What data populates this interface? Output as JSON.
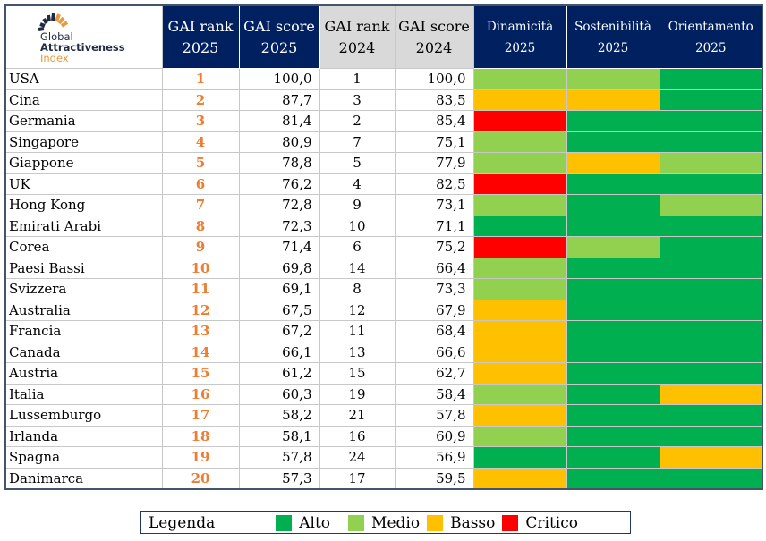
{
  "logo": {
    "line1": "Global",
    "line2": "Attractiveness",
    "line3": "Index"
  },
  "headers": {
    "rank2025": [
      "GAI rank",
      "2025"
    ],
    "score2025": [
      "GAI score",
      "2025"
    ],
    "rank2024": [
      "GAI rank",
      "2024"
    ],
    "score2024": [
      "GAI score",
      "2024"
    ],
    "dinamicita": [
      "Dinamicità",
      "2025"
    ],
    "sostenibilita": [
      "Sostenibilità",
      "2025"
    ],
    "orientamento": [
      "Orientamento",
      "2025"
    ]
  },
  "colors": {
    "alto": "#00B050",
    "medio": "#92D050",
    "basso": "#FFC000",
    "critico": "#FF0000"
  },
  "rows": [
    {
      "country": "USA",
      "rank2025": "1",
      "score2025": "100,0",
      "rank2024": "1",
      "score2024": "100,0",
      "levels": [
        "medio",
        "medio",
        "alto"
      ]
    },
    {
      "country": "Cina",
      "rank2025": "2",
      "score2025": "87,7",
      "rank2024": "3",
      "score2024": "83,5",
      "levels": [
        "basso",
        "basso",
        "alto"
      ]
    },
    {
      "country": "Germania",
      "rank2025": "3",
      "score2025": "81,4",
      "rank2024": "2",
      "score2024": "85,4",
      "levels": [
        "critico",
        "alto",
        "alto"
      ]
    },
    {
      "country": "Singapore",
      "rank2025": "4",
      "score2025": "80,9",
      "rank2024": "7",
      "score2024": "75,1",
      "levels": [
        "medio",
        "alto",
        "alto"
      ]
    },
    {
      "country": "Giappone",
      "rank2025": "5",
      "score2025": "78,8",
      "rank2024": "5",
      "score2024": "77,9",
      "levels": [
        "medio",
        "basso",
        "medio"
      ]
    },
    {
      "country": "UK",
      "rank2025": "6",
      "score2025": "76,2",
      "rank2024": "4",
      "score2024": "82,5",
      "levels": [
        "critico",
        "alto",
        "alto"
      ]
    },
    {
      "country": "Hong Kong",
      "rank2025": "7",
      "score2025": "72,8",
      "rank2024": "9",
      "score2024": "73,1",
      "levels": [
        "medio",
        "alto",
        "medio"
      ]
    },
    {
      "country": "Emirati Arabi",
      "rank2025": "8",
      "score2025": "72,3",
      "rank2024": "10",
      "score2024": "71,1",
      "levels": [
        "alto",
        "alto",
        "alto"
      ]
    },
    {
      "country": "Corea",
      "rank2025": "9",
      "score2025": "71,4",
      "rank2024": "6",
      "score2024": "75,2",
      "levels": [
        "critico",
        "medio",
        "alto"
      ]
    },
    {
      "country": "Paesi Bassi",
      "rank2025": "10",
      "score2025": "69,8",
      "rank2024": "14",
      "score2024": "66,4",
      "levels": [
        "medio",
        "alto",
        "alto"
      ]
    },
    {
      "country": "Svizzera",
      "rank2025": "11",
      "score2025": "69,1",
      "rank2024": "8",
      "score2024": "73,3",
      "levels": [
        "medio",
        "alto",
        "alto"
      ]
    },
    {
      "country": "Australia",
      "rank2025": "12",
      "score2025": "67,5",
      "rank2024": "12",
      "score2024": "67,9",
      "levels": [
        "basso",
        "alto",
        "alto"
      ]
    },
    {
      "country": "Francia",
      "rank2025": "13",
      "score2025": "67,2",
      "rank2024": "11",
      "score2024": "68,4",
      "levels": [
        "basso",
        "alto",
        "alto"
      ]
    },
    {
      "country": "Canada",
      "rank2025": "14",
      "score2025": "66,1",
      "rank2024": "13",
      "score2024": "66,6",
      "levels": [
        "basso",
        "alto",
        "alto"
      ]
    },
    {
      "country": "Austria",
      "rank2025": "15",
      "score2025": "61,2",
      "rank2024": "15",
      "score2024": "62,7",
      "levels": [
        "basso",
        "alto",
        "alto"
      ]
    },
    {
      "country": "Italia",
      "rank2025": "16",
      "score2025": "60,3",
      "rank2024": "19",
      "score2024": "58,4",
      "levels": [
        "medio",
        "alto",
        "basso"
      ]
    },
    {
      "country": "Lussemburgo",
      "rank2025": "17",
      "score2025": "58,2",
      "rank2024": "21",
      "score2024": "57,8",
      "levels": [
        "basso",
        "alto",
        "alto"
      ]
    },
    {
      "country": "Irlanda",
      "rank2025": "18",
      "score2025": "58,1",
      "rank2024": "16",
      "score2024": "60,9",
      "levels": [
        "medio",
        "alto",
        "alto"
      ]
    },
    {
      "country": "Spagna",
      "rank2025": "19",
      "score2025": "57,8",
      "rank2024": "24",
      "score2024": "56,9",
      "levels": [
        "alto",
        "alto",
        "basso"
      ]
    },
    {
      "country": "Danimarca",
      "rank2025": "20",
      "score2025": "57,3",
      "rank2024": "17",
      "score2024": "59,5",
      "levels": [
        "basso",
        "alto",
        "alto"
      ]
    }
  ],
  "legend": {
    "title": "Legenda",
    "items": [
      {
        "key": "alto",
        "label": "Alto"
      },
      {
        "key": "medio",
        "label": "Medio"
      },
      {
        "key": "basso",
        "label": "Basso"
      },
      {
        "key": "critico",
        "label": "Critico"
      }
    ]
  }
}
